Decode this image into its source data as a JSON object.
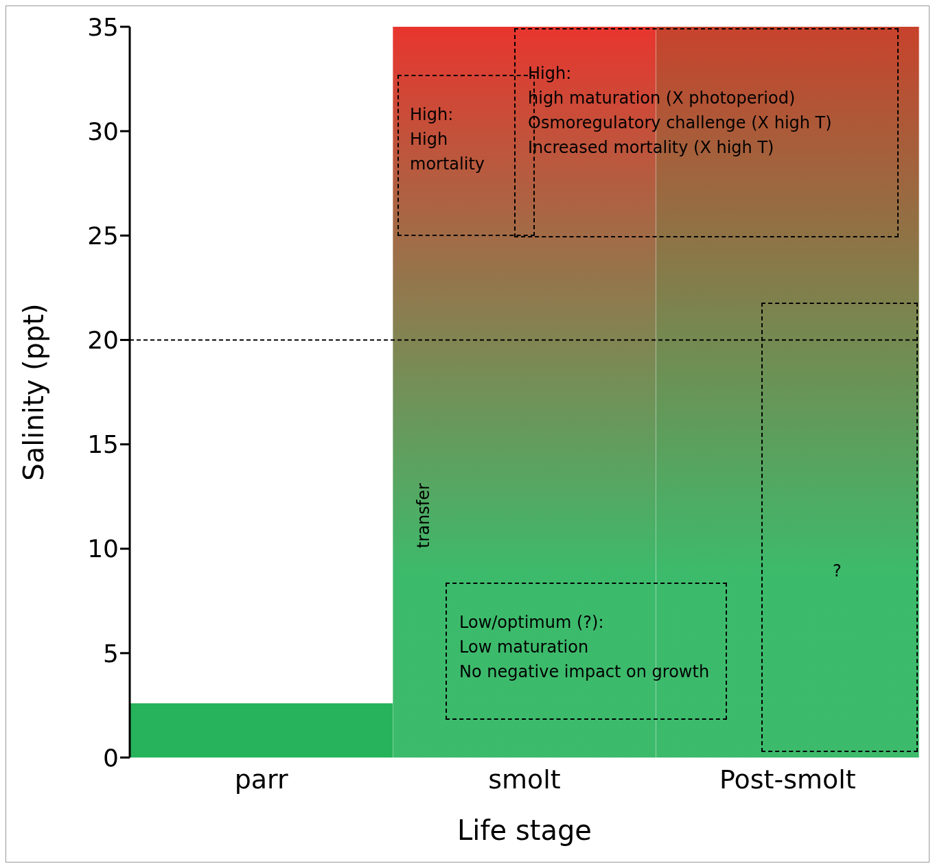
{
  "chart_data": {
    "type": "bar",
    "xlabel": "Life stage",
    "ylabel": "Salinity (ppt)",
    "categories": [
      "parr",
      "smolt",
      "Post-smolt"
    ],
    "values": [
      2.6,
      35,
      35
    ],
    "colors": [
      "#27b35b",
      "#e8352e",
      "#c8422c"
    ],
    "ylim": [
      0,
      35
    ],
    "yticks": [
      0,
      5,
      10,
      15,
      20,
      25,
      30,
      35
    ],
    "ref_lines": [
      {
        "axis": "y",
        "value": 20,
        "line_style": "dashed",
        "color": "#000000"
      }
    ],
    "annotations": [
      "High:\nHigh\nmortality",
      "High:\nhigh maturation (X photoperiod)\nOsmoregulatory challenge (X high T)\nIncreased mortality (X high T)",
      "transfer",
      "Low/optimum (?):\nLow maturation\nNo negative impact on growth",
      "?"
    ]
  }
}
